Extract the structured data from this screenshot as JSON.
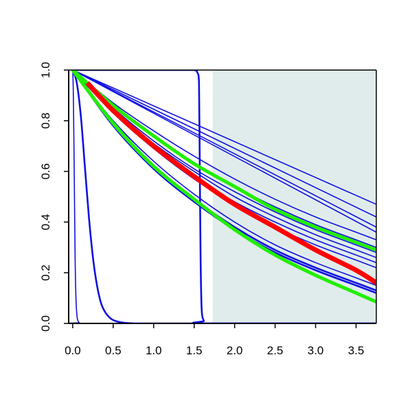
{
  "chart_data": {
    "type": "line",
    "xlim": [
      -0.05,
      3.75
    ],
    "ylim": [
      0.0,
      1.0
    ],
    "x_ticks": [
      0.0,
      0.5,
      1.0,
      1.5,
      2.0,
      2.5,
      3.0,
      3.5
    ],
    "x_tick_labels": [
      "0.0",
      "0.5",
      "1.0",
      "1.5",
      "2.0",
      "2.5",
      "3.0",
      "3.5"
    ],
    "y_ticks": [
      0.0,
      0.2,
      0.4,
      0.6,
      0.8,
      1.0
    ],
    "y_tick_labels": [
      "0.0",
      "0.2",
      "0.4",
      "0.6",
      "0.8",
      "1.0"
    ],
    "shaded_region": {
      "x_from": 1.73,
      "x_to": 3.75,
      "color": "#e0ecec"
    },
    "grid": false,
    "colors": {
      "blue": "#1010e0",
      "red": "#ff0000",
      "green": "#22ee00",
      "axis": "#000000"
    },
    "series": [
      {
        "color": "blue",
        "width": "thin",
        "x": [
          0,
          3.75
        ],
        "y": [
          1.0,
          0.47
        ]
      },
      {
        "color": "blue",
        "width": "thin",
        "x": [
          0,
          3.75
        ],
        "y": [
          1.0,
          0.42
        ]
      },
      {
        "color": "blue",
        "width": "thin",
        "x": [
          0,
          3.75
        ],
        "y": [
          1.0,
          0.38
        ]
      },
      {
        "color": "blue",
        "width": "thin",
        "x": [
          0,
          3.75
        ],
        "y": [
          1.0,
          0.36
        ]
      },
      {
        "color": "blue",
        "width": "thin",
        "x": [
          0,
          0.5,
          1.0,
          1.5,
          2.0,
          2.5,
          3.0,
          3.5,
          3.75
        ],
        "y": [
          1.0,
          0.87,
          0.76,
          0.66,
          0.57,
          0.49,
          0.42,
          0.36,
          0.33
        ]
      },
      {
        "color": "blue",
        "width": "thin",
        "x": [
          0,
          0.5,
          1.0,
          1.5,
          2.0,
          2.5,
          3.0,
          3.5,
          3.75
        ],
        "y": [
          1.0,
          0.86,
          0.74,
          0.63,
          0.54,
          0.46,
          0.39,
          0.33,
          0.3
        ]
      },
      {
        "color": "blue",
        "width": "thin",
        "x": [
          0,
          0.5,
          1.0,
          1.5,
          2.0,
          2.5,
          3.0,
          3.5,
          3.75
        ],
        "y": [
          1.0,
          0.85,
          0.72,
          0.61,
          0.52,
          0.44,
          0.37,
          0.31,
          0.28
        ]
      },
      {
        "color": "blue",
        "width": "thin",
        "x": [
          0,
          0.5,
          1.0,
          1.5,
          2.0,
          2.5,
          3.0,
          3.5,
          3.75
        ],
        "y": [
          1.0,
          0.84,
          0.71,
          0.6,
          0.5,
          0.42,
          0.35,
          0.29,
          0.26
        ]
      },
      {
        "color": "blue",
        "width": "thin",
        "x": [
          0,
          0.5,
          1.0,
          1.5,
          2.0,
          2.5,
          3.0,
          3.5,
          3.75
        ],
        "y": [
          1.0,
          0.84,
          0.7,
          0.58,
          0.48,
          0.4,
          0.33,
          0.27,
          0.24
        ]
      },
      {
        "color": "blue",
        "width": "thin",
        "x": [
          0,
          0.5,
          1.0,
          1.5,
          2.0,
          2.5,
          3.0,
          3.5,
          3.75
        ],
        "y": [
          1.0,
          0.83,
          0.69,
          0.57,
          0.47,
          0.38,
          0.31,
          0.25,
          0.22
        ]
      },
      {
        "color": "blue",
        "width": "thin",
        "x": [
          0,
          0.5,
          1.0,
          1.5,
          2.0,
          2.5,
          3.0,
          3.5,
          3.75
        ],
        "y": [
          1.0,
          0.8,
          0.64,
          0.51,
          0.4,
          0.31,
          0.24,
          0.18,
          0.15
        ]
      },
      {
        "color": "blue",
        "width": "medium",
        "x": [
          0,
          0.5,
          1.0,
          1.5,
          2.0,
          2.5,
          3.0,
          3.5,
          3.75
        ],
        "y": [
          1.0,
          0.79,
          0.62,
          0.49,
          0.38,
          0.29,
          0.22,
          0.16,
          0.13
        ]
      },
      {
        "color": "blue",
        "width": "medium",
        "x": [
          0,
          0.5,
          1.0,
          1.5,
          2.0,
          2.5,
          3.0,
          3.5,
          3.75
        ],
        "y": [
          1.0,
          0.78,
          0.61,
          0.48,
          0.37,
          0.28,
          0.21,
          0.15,
          0.12
        ]
      },
      {
        "color": "blue",
        "width": "thin",
        "x": [
          -0.02,
          0.0,
          0.01,
          0.02,
          0.03,
          0.04,
          0.05,
          0.06,
          0.08,
          0.12,
          3.75
        ],
        "y": [
          1.0,
          1.0,
          0.85,
          0.55,
          0.25,
          0.1,
          0.04,
          0.015,
          0.003,
          0.0,
          0.0
        ]
      },
      {
        "color": "blue",
        "width": "medium",
        "x": [
          0,
          0.05,
          0.1,
          0.15,
          0.2,
          0.25,
          0.3,
          0.35,
          0.4,
          0.45,
          0.5,
          0.6,
          0.7,
          0.8,
          1.0,
          3.75
        ],
        "y": [
          1.0,
          0.95,
          0.82,
          0.62,
          0.42,
          0.26,
          0.15,
          0.08,
          0.045,
          0.025,
          0.013,
          0.004,
          0.001,
          0.0,
          0.0,
          0.0
        ]
      },
      {
        "color": "blue",
        "width": "medium",
        "x": [
          0,
          1.4,
          1.5,
          1.54,
          1.56,
          1.57,
          1.58,
          1.59,
          1.6,
          1.62,
          1.65,
          3.75
        ],
        "y": [
          1.0,
          1.0,
          1.0,
          0.99,
          0.95,
          0.6,
          0.25,
          0.08,
          0.03,
          0.01,
          0.0,
          0.0
        ]
      },
      {
        "color": "green",
        "width": "thick",
        "x": [
          0,
          0.5,
          1.0,
          1.5,
          2.0,
          2.5,
          3.0,
          3.5,
          3.75
        ],
        "y": [
          1.0,
          0.86,
          0.74,
          0.63,
          0.54,
          0.45,
          0.38,
          0.32,
          0.29
        ]
      },
      {
        "color": "green",
        "width": "thick",
        "x": [
          0,
          0.5,
          1.0,
          1.5,
          2.0,
          2.5,
          3.0,
          3.5,
          3.75
        ],
        "y": [
          1.0,
          0.79,
          0.62,
          0.49,
          0.37,
          0.27,
          0.19,
          0.12,
          0.085
        ]
      },
      {
        "color": "red",
        "width": "heavy",
        "x": [
          0.18,
          0.5,
          1.0,
          1.5,
          2.0,
          2.5,
          3.0,
          3.5,
          3.75
        ],
        "y": [
          0.95,
          0.84,
          0.7,
          0.58,
          0.47,
          0.38,
          0.29,
          0.21,
          0.16
        ]
      }
    ]
  }
}
